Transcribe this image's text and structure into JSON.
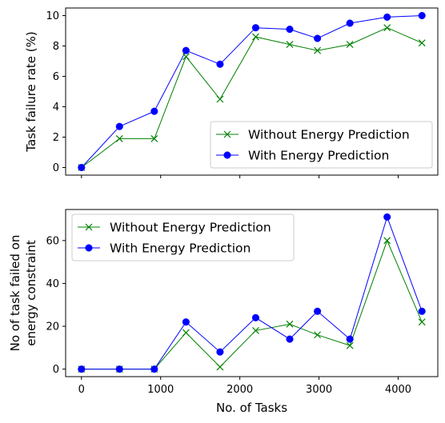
{
  "chart_data": [
    {
      "type": "line",
      "title": "",
      "xlabel": "",
      "ylabel": "Task failure rate (%)",
      "x": [
        0,
        480,
        920,
        1320,
        1750,
        2200,
        2630,
        2980,
        3390,
        3860,
        4300
      ],
      "xlim": [
        -200,
        4500
      ],
      "ylim": [
        -0.5,
        10.5
      ],
      "yticks": [
        "0",
        "2",
        "4",
        "6",
        "8",
        "10"
      ],
      "xtick_labels_visible": false,
      "grid": false,
      "legend": "bottom-right",
      "series": [
        {
          "name": "Without Energy Prediction",
          "color": "#008000",
          "marker": "x",
          "values": [
            0,
            1.9,
            1.9,
            7.3,
            4.5,
            8.6,
            8.1,
            7.7,
            8.1,
            9.2,
            8.2
          ]
        },
        {
          "name": "With Energy Prediction",
          "color": "#0000ff",
          "marker": "o",
          "values": [
            0,
            2.7,
            3.7,
            7.7,
            6.8,
            9.2,
            9.1,
            8.5,
            9.5,
            9.9,
            10.0
          ]
        }
      ]
    },
    {
      "type": "line",
      "title": "",
      "xlabel": "No. of Tasks",
      "ylabel": "No of task failed on energy constraint",
      "ylabel_lines": [
        "No of task failed on",
        "energy constraint"
      ],
      "x": [
        0,
        480,
        920,
        1320,
        1750,
        2200,
        2630,
        2980,
        3390,
        3860,
        4300
      ],
      "xlim": [
        -200,
        4500
      ],
      "ylim": [
        -3.5,
        74.5
      ],
      "xticks": [
        "0",
        "1000",
        "2000",
        "3000",
        "4000"
      ],
      "yticks": [
        "0",
        "20",
        "40",
        "60"
      ],
      "grid": false,
      "legend": "top-left",
      "series": [
        {
          "name": "Without Energy Prediction",
          "color": "#008000",
          "marker": "x",
          "values": [
            0,
            0,
            0,
            17,
            1,
            18,
            21,
            16,
            11,
            60,
            22
          ]
        },
        {
          "name": "With Energy Prediction",
          "color": "#0000ff",
          "marker": "o",
          "values": [
            0,
            0,
            0,
            22,
            8,
            24,
            14,
            27,
            14,
            71,
            27
          ]
        }
      ]
    }
  ]
}
